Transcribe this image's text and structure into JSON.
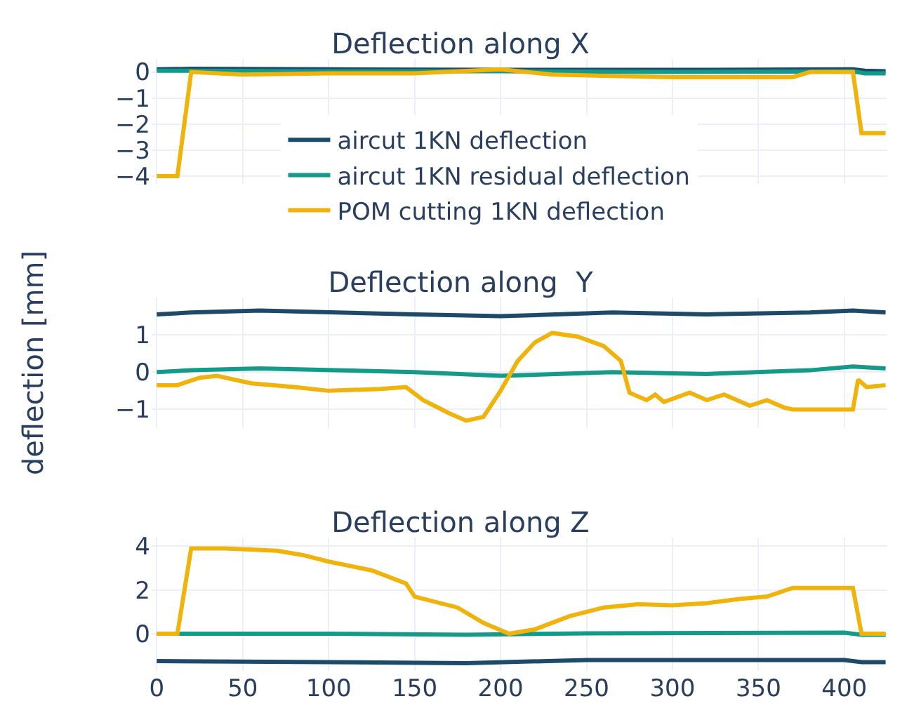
{
  "chart_data": [
    {
      "type": "line",
      "title": "Deflection along X",
      "x": [
        0,
        20,
        100,
        200,
        300,
        405,
        412,
        424
      ],
      "xlim": [
        -3,
        425
      ],
      "xticks": [
        0,
        50,
        100,
        150,
        200,
        250,
        300,
        350,
        400
      ],
      "ylim": [
        -4.3,
        0.5
      ],
      "yticks": [
        0,
        {
          "value": -1,
          "label": "−1"
        },
        {
          "value": -2,
          "label": "−2"
        },
        {
          "value": -3,
          "label": "−3"
        },
        {
          "value": -4,
          "label": "−4"
        }
      ],
      "grid": true,
      "legend": "bottom",
      "tick_labels": "y",
      "series": [
        {
          "name": "aircut 1KN deflection",
          "color": "#1b4a6b",
          "values": [
            0.1,
            0.12,
            0.1,
            0.08,
            0.08,
            0.1,
            0.05,
            0.03
          ]
        },
        {
          "name": "aircut 1KN residual deflection",
          "color": "#139a8a",
          "values": [
            0.05,
            0.05,
            0.03,
            0.03,
            0,
            0.02,
            -0.05,
            -0.05
          ]
        },
        {
          "name": "POM cutting 1KN deflection",
          "color": "#f0b30c",
          "x": [
            0,
            12,
            20,
            50,
            100,
            150,
            200,
            230,
            260,
            300,
            370,
            380,
            405,
            410,
            424
          ],
          "values": [
            -4,
            -4,
            0,
            -0.1,
            -0.05,
            -0.05,
            0.1,
            -0.1,
            -0.15,
            -0.2,
            -0.2,
            0,
            0,
            -2.35,
            -2.35
          ]
        }
      ]
    },
    {
      "type": "line",
      "title": "Deflection along  Y",
      "ylabel": "deflection [mm]",
      "x": [
        0,
        20,
        60,
        150,
        200,
        265,
        320,
        380,
        405,
        424
      ],
      "xlim": [
        -3,
        425
      ],
      "xticks": [
        0,
        50,
        100,
        150,
        200,
        250,
        300,
        350,
        400
      ],
      "ylim": [
        -1.5,
        2.0
      ],
      "yticks": [
        1,
        0,
        {
          "value": -1,
          "label": "−1"
        }
      ],
      "grid": true,
      "tick_labels": "y",
      "series": [
        {
          "color": "#1b4a6b",
          "values": [
            1.55,
            1.6,
            1.65,
            1.55,
            1.5,
            1.6,
            1.55,
            1.6,
            1.65,
            1.6
          ]
        },
        {
          "color": "#139a8a",
          "values": [
            0,
            0.05,
            0.1,
            0,
            -0.1,
            0,
            -0.05,
            0.05,
            0.15,
            0.1
          ]
        },
        {
          "color": "#f0b30c",
          "x": [
            0,
            12,
            25,
            35,
            55,
            80,
            100,
            130,
            145,
            155,
            170,
            180,
            190,
            200,
            210,
            220,
            230,
            245,
            260,
            270,
            275,
            285,
            290,
            295,
            310,
            320,
            330,
            345,
            355,
            365,
            370,
            405,
            408,
            413,
            424
          ],
          "values": [
            -0.35,
            -0.35,
            -0.15,
            -0.1,
            -0.3,
            -0.4,
            -0.5,
            -0.45,
            -0.4,
            -0.75,
            -1.1,
            -1.3,
            -1.2,
            -0.5,
            0.3,
            0.8,
            1.05,
            0.95,
            0.7,
            0.3,
            -0.55,
            -0.75,
            -0.6,
            -0.8,
            -0.55,
            -0.75,
            -0.6,
            -0.9,
            -0.75,
            -0.95,
            -1.0,
            -1.0,
            -0.2,
            -0.4,
            -0.35
          ]
        }
      ]
    },
    {
      "type": "line",
      "title": "Deflection along Z",
      "x": [
        0,
        100,
        180,
        250,
        400,
        410,
        424
      ],
      "xlim": [
        -3,
        425
      ],
      "xticks": [
        0,
        50,
        100,
        150,
        200,
        250,
        300,
        350,
        400
      ],
      "ylim": [
        -1.7,
        4.4
      ],
      "yticks": [
        4,
        2,
        0
      ],
      "grid": true,
      "series": [
        {
          "color": "#1b4a6b",
          "values": [
            -1.25,
            -1.3,
            -1.35,
            -1.2,
            -1.2,
            -1.3,
            -1.3
          ]
        },
        {
          "color": "#139a8a",
          "values": [
            0,
            0,
            -0.05,
            0.02,
            0.05,
            -0.05,
            -0.05
          ]
        },
        {
          "color": "#f0b30c",
          "x": [
            0,
            12,
            20,
            40,
            70,
            85,
            100,
            125,
            145,
            150,
            175,
            190,
            205,
            220,
            240,
            260,
            280,
            300,
            320,
            340,
            355,
            370,
            405,
            410,
            424
          ],
          "values": [
            0,
            0,
            3.9,
            3.9,
            3.8,
            3.6,
            3.3,
            2.9,
            2.3,
            1.7,
            1.2,
            0.5,
            0,
            0.2,
            0.8,
            1.2,
            1.35,
            1.3,
            1.4,
            1.6,
            1.7,
            2.1,
            2.1,
            0,
            0
          ]
        }
      ]
    }
  ]
}
